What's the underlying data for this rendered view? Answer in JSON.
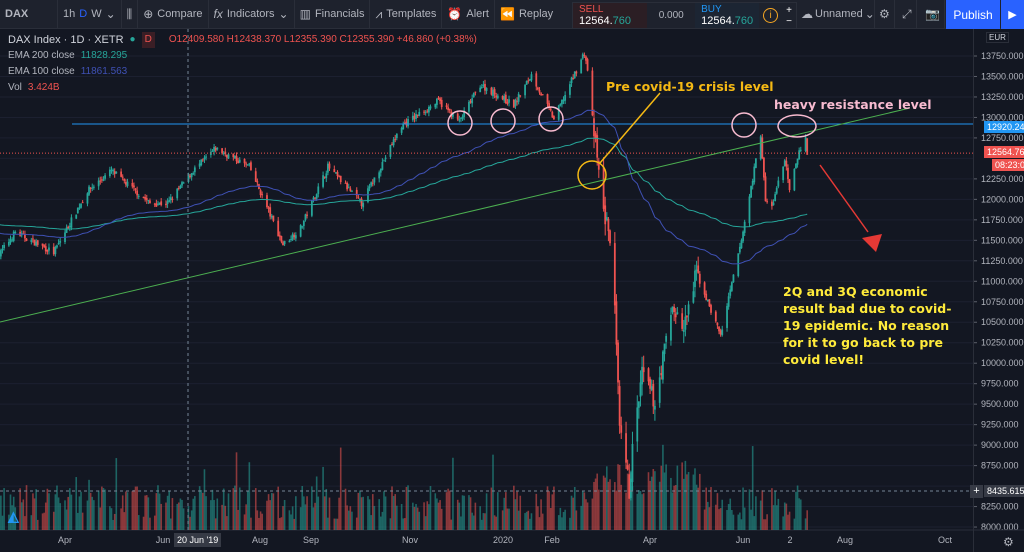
{
  "toolbar": {
    "symbol": "DAX",
    "intervals": [
      "1h",
      "D",
      "W"
    ],
    "active_interval": "D",
    "compare": "Compare",
    "indicators": "Indicators",
    "financials": "Financials",
    "templates": "Templates",
    "alert": "Alert",
    "replay": "Replay",
    "layout_name": "Unnamed",
    "publish": "Publish"
  },
  "trade": {
    "sell_label": "SELL",
    "sell_price_main": "12564.",
    "sell_price_dec": "760",
    "spread": "0.000",
    "buy_label": "BUY",
    "buy_price_main": "12564.",
    "buy_price_dec": "760"
  },
  "legend": {
    "title": "DAX Index · 1D · XETR",
    "badge": "D",
    "ohlc": "O12409.580 H12438.370 L12355.390 C12355.390 +46.860 (+0.38%)",
    "ema200_label": "EMA 200 close",
    "ema200_value": "11828.295",
    "ema100_label": "EMA 100 close",
    "ema100_value": "11861.563",
    "vol_label": "Vol",
    "vol_value": "3.424B"
  },
  "colors": {
    "up": "#26a69a",
    "down": "#ef5350",
    "ema200": "#26a69a",
    "ema100": "#3f51b5",
    "resistance_line": "#2196f3",
    "trendline": "#4caf50",
    "annotation_yellow": "#ffeb3b",
    "annotation_orange": "#f5b914",
    "annotation_pink": "#f8bbd0",
    "arrow": "#e53935"
  },
  "price_axis": {
    "currency": "EUR",
    "ticks": [
      "13750.000",
      "13500.000",
      "13250.000",
      "13000.000",
      "12750.000",
      "12250.000",
      "12000.000",
      "11750.000",
      "11500.000",
      "11250.000",
      "11000.000",
      "10750.000",
      "10500.000",
      "10250.000",
      "10000.000",
      "9750.000",
      "9500.000",
      "9250.000",
      "9000.000",
      "8750.000",
      "8250.000",
      "8000.000"
    ],
    "resistance_label": "12920.241",
    "last_price_label": "12564.760",
    "countdown": "08:23:06",
    "crosshair_price": "8435.615"
  },
  "time_axis": {
    "ticks": [
      "Apr",
      "Jun",
      "Aug",
      "Sep",
      "Nov",
      "2020",
      "Feb",
      "Apr",
      "Jun",
      "2",
      "Aug",
      "Oct"
    ],
    "crosshair_date": "20 Jun '19"
  },
  "annotations": {
    "pre_covid": "Pre covid-19 crisis level",
    "resistance": "heavy resistance level",
    "note": "2Q and 3Q economic result bad due to covid-19 epidemic. No reason for it to go back to pre covid level!"
  },
  "chart_data": {
    "type": "candlestick",
    "resistance_level": 12920.241,
    "last_price": 12564.76,
    "price_path": [
      [
        "2019-02-18",
        11300
      ],
      [
        "2019-03-01",
        11600
      ],
      [
        "2019-03-25",
        11350
      ],
      [
        "2019-04-15",
        12100
      ],
      [
        "2019-04-30",
        12350
      ],
      [
        "2019-05-24",
        11950
      ],
      [
        "2019-06-04",
        11950
      ],
      [
        "2019-06-20",
        12350
      ],
      [
        "2019-07-04",
        12620
      ],
      [
        "2019-07-25",
        12400
      ],
      [
        "2019-08-15",
        11450
      ],
      [
        "2019-08-26",
        11650
      ],
      [
        "2019-09-12",
        12400
      ],
      [
        "2019-10-03",
        11950
      ],
      [
        "2019-10-28",
        12900
      ],
      [
        "2019-11-20",
        13200
      ],
      [
        "2019-12-03",
        12950
      ],
      [
        "2019-12-16",
        13400
      ],
      [
        "2020-01-06",
        13150
      ],
      [
        "2020-01-17",
        13520
      ],
      [
        "2020-01-31",
        12980
      ],
      [
        "2020-02-19",
        13790
      ],
      [
        "2020-02-21",
        13580
      ],
      [
        "2020-02-25",
        12800
      ],
      [
        "2020-03-02",
        11850
      ],
      [
        "2020-03-06",
        11550
      ],
      [
        "2020-03-09",
        10630
      ],
      [
        "2020-03-12",
        9160
      ],
      [
        "2020-03-16",
        8740
      ],
      [
        "2020-03-18",
        8440
      ],
      [
        "2020-03-20",
        8930
      ],
      [
        "2020-03-26",
        9870
      ],
      [
        "2020-04-03",
        9520
      ],
      [
        "2020-04-14",
        10700
      ],
      [
        "2020-04-21",
        10400
      ],
      [
        "2020-04-29",
        11100
      ],
      [
        "2020-05-14",
        10340
      ],
      [
        "2020-05-27",
        11500
      ],
      [
        "2020-06-08",
        12800
      ],
      [
        "2020-06-11",
        11970
      ],
      [
        "2020-06-15",
        11910
      ],
      [
        "2020-06-23",
        12500
      ],
      [
        "2020-06-26",
        12090
      ],
      [
        "2020-07-02",
        12600
      ],
      [
        "2020-07-06",
        12730
      ],
      [
        "2020-07-07",
        12560
      ]
    ]
  }
}
